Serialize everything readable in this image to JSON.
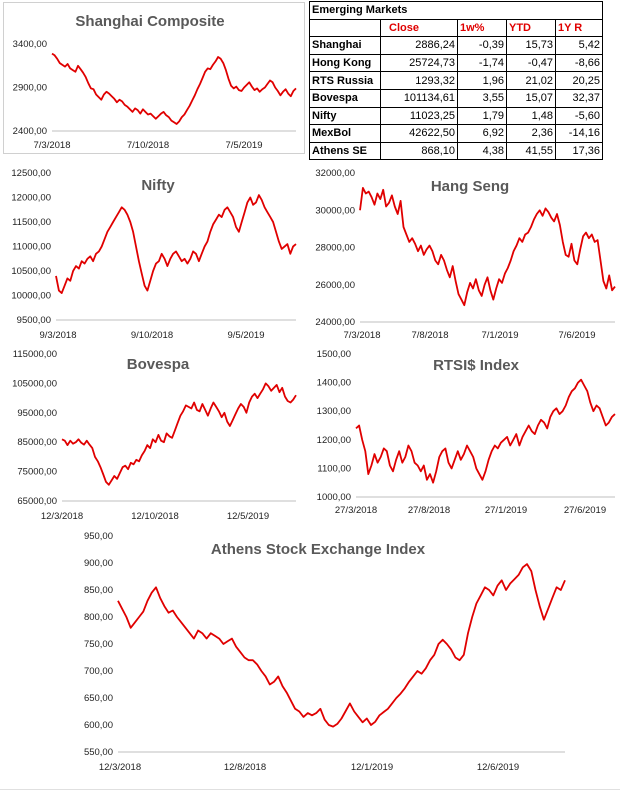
{
  "table": {
    "title": "Emerging Markets",
    "headers": [
      "Close",
      "1w%",
      "YTD",
      "1Y R"
    ],
    "rows": [
      {
        "name": "Shanghai",
        "close": "2886,24",
        "w1": "-0,39",
        "ytd": "15,73",
        "y1": "5,42"
      },
      {
        "name": "Hong Kong",
        "close": "25724,73",
        "w1": "-1,74",
        "ytd": "-0,47",
        "y1": "-8,66"
      },
      {
        "name": "RTS Russia",
        "close": "1293,32",
        "w1": "1,96",
        "ytd": "21,02",
        "y1": "20,25"
      },
      {
        "name": "Bovespa",
        "close": "101134,61",
        "w1": "3,55",
        "ytd": "15,07",
        "y1": "32,37"
      },
      {
        "name": "Nifty",
        "close": "11023,25",
        "w1": "1,79",
        "ytd": "1,48",
        "y1": "-5,60"
      },
      {
        "name": "MexBol",
        "close": "42622,50",
        "w1": "6,92",
        "ytd": "2,36",
        "y1": "-14,16"
      },
      {
        "name": "Athens SE",
        "close": "868,10",
        "w1": "4,38",
        "ytd": "41,55",
        "y1": "17,36"
      }
    ]
  },
  "chart_data": [
    {
      "id": "shanghai",
      "type": "line",
      "title": "Shanghai Composite",
      "series_color": "#e00000",
      "ylim": [
        2400,
        3400
      ],
      "yticks": [
        "3400,00",
        "2900,00",
        "2400,00"
      ],
      "xticks": [
        "7/3/2018",
        "7/10/2018",
        "7/5/2019"
      ],
      "values": [
        3290,
        3270,
        3230,
        3180,
        3160,
        3140,
        3170,
        3120,
        3100,
        3080,
        3150,
        3110,
        3070,
        3020,
        2950,
        2890,
        2880,
        2820,
        2790,
        2760,
        2820,
        2850,
        2830,
        2800,
        2770,
        2730,
        2760,
        2740,
        2700,
        2680,
        2650,
        2620,
        2660,
        2640,
        2600,
        2650,
        2620,
        2590,
        2600,
        2570,
        2540,
        2570,
        2600,
        2620,
        2580,
        2560,
        2520,
        2500,
        2480,
        2510,
        2560,
        2590,
        2640,
        2690,
        2750,
        2810,
        2880,
        2940,
        3010,
        3080,
        3120,
        3110,
        3160,
        3200,
        3250,
        3230,
        3180,
        3100,
        3000,
        2920,
        2890,
        2910,
        2870,
        2860,
        2900,
        2930,
        2960,
        2910,
        2870,
        2890,
        2850,
        2880,
        2900,
        2940,
        2980,
        2960,
        2900,
        2860,
        2810,
        2850,
        2880,
        2830,
        2800,
        2860,
        2890
      ]
    },
    {
      "id": "nifty",
      "type": "line",
      "title": "Nifty",
      "series_color": "#e00000",
      "ylim": [
        9500,
        12500
      ],
      "yticks": [
        "12500,00",
        "12000,00",
        "11500,00",
        "11000,00",
        "10500,00",
        "10000,00",
        "9500,00"
      ],
      "xticks": [
        "9/3/2018",
        "9/10/2018",
        "9/5/2019"
      ],
      "values": [
        10400,
        10100,
        10050,
        10200,
        10350,
        10300,
        10500,
        10600,
        10550,
        10700,
        10650,
        10750,
        10800,
        10700,
        10850,
        10900,
        11000,
        11150,
        11300,
        11400,
        11500,
        11600,
        11700,
        11800,
        11750,
        11650,
        11500,
        11300,
        11000,
        10700,
        10450,
        10200,
        10100,
        10300,
        10500,
        10650,
        10700,
        10850,
        10750,
        10600,
        10750,
        10850,
        10900,
        10800,
        10700,
        10750,
        10650,
        10750,
        10900,
        10850,
        10700,
        10850,
        11000,
        11100,
        11300,
        11450,
        11550,
        11650,
        11600,
        11750,
        11800,
        11700,
        11600,
        11400,
        11300,
        11500,
        11700,
        11900,
        12000,
        11850,
        11900,
        12050,
        11950,
        11800,
        11700,
        11600,
        11500,
        11300,
        11100,
        10950,
        11000,
        11050,
        10850,
        11000,
        11050
      ]
    },
    {
      "id": "hangseng",
      "type": "line",
      "title": "Hang Seng",
      "series_color": "#e00000",
      "ylim": [
        24000,
        32000
      ],
      "yticks": [
        "32000,00",
        "30000,00",
        "28000,00",
        "26000,00",
        "24000,00"
      ],
      "xticks": [
        "7/3/2018",
        "7/8/2018",
        "7/1/2019",
        "7/6/2019"
      ],
      "values": [
        30000,
        31200,
        30900,
        31000,
        30700,
        30300,
        30900,
        30600,
        31100,
        30200,
        30400,
        30800,
        30200,
        29800,
        30500,
        29100,
        28700,
        28300,
        28500,
        28200,
        27800,
        28100,
        27600,
        27900,
        28100,
        27800,
        27300,
        27100,
        27600,
        27300,
        26800,
        26400,
        27000,
        26200,
        25500,
        25200,
        24900,
        25600,
        26100,
        25800,
        26300,
        25700,
        25400,
        26000,
        26400,
        25700,
        25200,
        25800,
        26300,
        26100,
        26600,
        26900,
        27300,
        27800,
        28100,
        28500,
        28300,
        28700,
        28800,
        29100,
        29500,
        29800,
        30000,
        29700,
        30100,
        29900,
        29600,
        29400,
        29800,
        29200,
        28300,
        27600,
        27500,
        28200,
        27300,
        27100,
        27900,
        28600,
        28800,
        28500,
        28700,
        28300,
        28400,
        27300,
        26200,
        25800,
        26500,
        25700,
        25900
      ]
    },
    {
      "id": "bovespa",
      "type": "line",
      "title": "Bovespa",
      "series_color": "#e00000",
      "ylim": [
        65000,
        115000
      ],
      "yticks": [
        "115000,00",
        "105000,00",
        "95000,00",
        "85000,00",
        "75000,00",
        "65000,00"
      ],
      "xticks": [
        "12/3/2018",
        "12/10/2018",
        "12/5/2019"
      ],
      "values": [
        86000,
        85500,
        84000,
        85500,
        84500,
        85000,
        86000,
        84800,
        84200,
        85500,
        84200,
        83000,
        80000,
        78500,
        76500,
        74000,
        71500,
        70500,
        72000,
        73500,
        72500,
        74500,
        76500,
        77000,
        75800,
        78000,
        77500,
        79000,
        78500,
        80500,
        82000,
        84000,
        83000,
        86000,
        85000,
        87500,
        85500,
        85000,
        88000,
        87000,
        86500,
        89000,
        91500,
        94000,
        95500,
        97500,
        97000,
        96500,
        98500,
        96000,
        95500,
        98000,
        96000,
        94000,
        96500,
        98500,
        97000,
        95500,
        93500,
        95000,
        92000,
        90500,
        92500,
        94500,
        96500,
        98000,
        97000,
        95000,
        98500,
        100500,
        101500,
        100000,
        101500,
        103000,
        105000,
        104000,
        102500,
        103500,
        104500,
        102000,
        103500,
        100500,
        99000,
        98500,
        99500,
        101000
      ]
    },
    {
      "id": "rtsi",
      "type": "line",
      "title": "RTSI$ Index",
      "series_color": "#e00000",
      "ylim": [
        1000,
        1500
      ],
      "yticks": [
        "1500,00",
        "1400,00",
        "1300,00",
        "1200,00",
        "1100,00",
        "1000,00"
      ],
      "xticks": [
        "27/3/2018",
        "27/8/2018",
        "27/1/2019",
        "27/6/2019"
      ],
      "values": [
        1240,
        1250,
        1200,
        1160,
        1080,
        1110,
        1150,
        1120,
        1140,
        1170,
        1160,
        1110,
        1090,
        1130,
        1160,
        1120,
        1140,
        1180,
        1160,
        1120,
        1110,
        1090,
        1110,
        1060,
        1080,
        1050,
        1090,
        1140,
        1160,
        1170,
        1120,
        1100,
        1130,
        1160,
        1130,
        1150,
        1180,
        1160,
        1140,
        1100,
        1080,
        1060,
        1090,
        1130,
        1160,
        1180,
        1170,
        1190,
        1200,
        1210,
        1180,
        1200,
        1220,
        1180,
        1210,
        1230,
        1250,
        1230,
        1220,
        1250,
        1270,
        1260,
        1240,
        1280,
        1300,
        1310,
        1290,
        1300,
        1320,
        1350,
        1370,
        1380,
        1400,
        1410,
        1390,
        1370,
        1330,
        1300,
        1320,
        1310,
        1280,
        1250,
        1260,
        1280,
        1290
      ]
    },
    {
      "id": "athens",
      "type": "line",
      "title": "Athens Stock Exchange Index",
      "series_color": "#e00000",
      "ylim": [
        550,
        950
      ],
      "yticks": [
        "950,00",
        "900,00",
        "850,00",
        "800,00",
        "750,00",
        "700,00",
        "650,00",
        "600,00",
        "550,00"
      ],
      "xticks": [
        "12/3/2018",
        "12/8/2018",
        "12/1/2019",
        "12/6/2019"
      ],
      "values": [
        830,
        815,
        800,
        780,
        790,
        800,
        810,
        830,
        845,
        855,
        835,
        820,
        808,
        812,
        800,
        790,
        780,
        770,
        760,
        775,
        770,
        760,
        770,
        765,
        760,
        750,
        755,
        760,
        745,
        735,
        725,
        720,
        720,
        712,
        700,
        690,
        675,
        680,
        690,
        672,
        660,
        645,
        630,
        625,
        615,
        622,
        618,
        622,
        630,
        610,
        600,
        597,
        602,
        612,
        626,
        640,
        625,
        615,
        605,
        612,
        600,
        606,
        618,
        624,
        630,
        640,
        650,
        658,
        668,
        680,
        690,
        700,
        695,
        705,
        720,
        730,
        750,
        758,
        750,
        740,
        725,
        720,
        730,
        770,
        800,
        825,
        840,
        855,
        850,
        840,
        858,
        868,
        850,
        862,
        870,
        878,
        892,
        898,
        885,
        850,
        820,
        795,
        815,
        835,
        855,
        850,
        868
      ]
    }
  ]
}
